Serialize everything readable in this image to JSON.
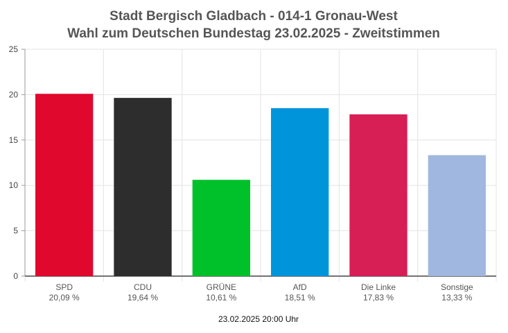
{
  "chart_data": {
    "type": "bar",
    "title": [
      "Stadt Bergisch Gladbach - 014-1 Gronau-West",
      "Wahl zum Deutschen Bundestag 23.02.2025  - Zweitstimmen"
    ],
    "categories": [
      "SPD",
      "CDU",
      "GRÜNE",
      "AfD",
      "Die Linke",
      "Sonstige"
    ],
    "values": [
      20.09,
      19.64,
      10.61,
      18.51,
      17.83,
      13.33
    ],
    "value_labels": [
      "20,09 %",
      "19,64 %",
      "10,61 %",
      "18,51 %",
      "17,83 %",
      "13,33 %"
    ],
    "colors": [
      "#e0082c",
      "#2d2d2d",
      "#00c12a",
      "#0095db",
      "#d81f55",
      "#a0b8e0"
    ],
    "yticks": [
      "0",
      "5",
      "10",
      "15",
      "20",
      "25"
    ],
    "ylim": [
      0,
      25
    ],
    "grid": true,
    "xlabel": "",
    "ylabel": "",
    "footer": "23.02.2025 20:00 Uhr"
  }
}
